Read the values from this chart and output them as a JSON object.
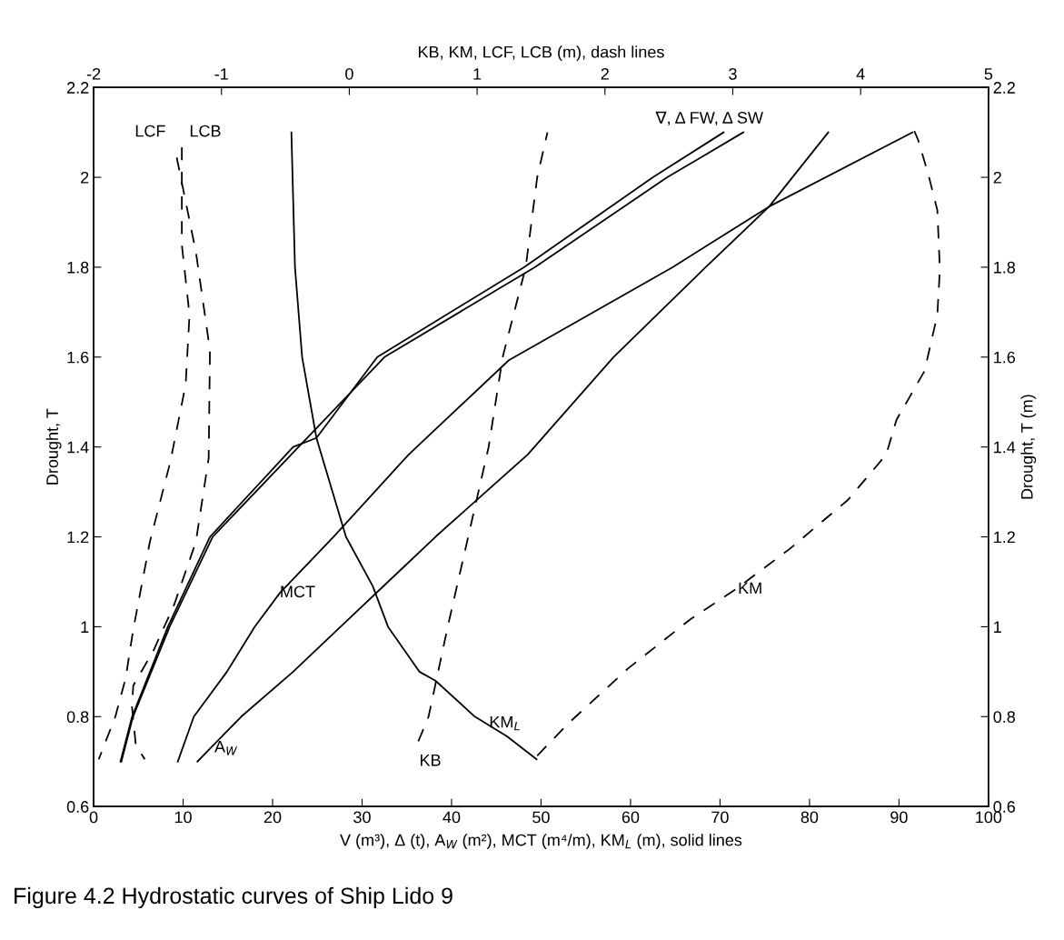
{
  "chart_data": {
    "type": "line",
    "title": "Figure 4.2 Hydrostatic curves of Ship Lido 9",
    "xlabel": "V (m³), Δ (t), A$_{W}$ (m²), MCT (m⁴/m), KM$_{L}$ (m), solid lines",
    "x2label": "KB, KM, LCF, LCB (m), dash lines",
    "ylabel": "Drought, T",
    "y2label": "Drought, T (m)",
    "xlim": [
      0,
      100
    ],
    "xticks": [
      0,
      10,
      20,
      30,
      40,
      50,
      60,
      70,
      80,
      90,
      100
    ],
    "x2lim": [
      -2,
      5
    ],
    "x2ticks": [
      -2,
      -1,
      0,
      1,
      2,
      3,
      4,
      5
    ],
    "ylim": [
      0.6,
      2.2
    ],
    "yticks": [
      0.6,
      0.8,
      1,
      1.2,
      1.4,
      1.6,
      1.8,
      2,
      2.2
    ],
    "y2lim": [
      0.6,
      2.2
    ],
    "y2ticks": [
      0.6,
      0.8,
      1,
      1.2,
      1.4,
      1.6,
      1.8,
      2,
      2.2
    ],
    "grid": false,
    "series": [
      {
        "color": "#000000",
        "line_style": "solid",
        "x": [
          3.0,
          4.3,
          8.3,
          13.0,
          22.3,
          24.9,
          31.7,
          48.1,
          62.5,
          70.4
        ],
        "values": [
          0.7,
          0.8,
          1.0,
          1.2,
          1.4,
          1.42,
          1.6,
          1.8,
          2.0,
          2.1
        ]
      },
      {
        "color": "#000000",
        "line_style": "solid",
        "x": [
          3.1,
          4.4,
          8.5,
          13.3,
          22.9,
          32.5,
          49.3,
          64.1,
          72.6
        ],
        "values": [
          0.7,
          0.8,
          1.0,
          1.2,
          1.4,
          1.6,
          1.8,
          2.0,
          2.1
        ]
      },
      {
        "color": "#000000",
        "line_style": "solid",
        "x": [
          9.4,
          11.2,
          14.9,
          18.0,
          20.8,
          26.8,
          35.2,
          46.4,
          64.7,
          75.5,
          91.5
        ],
        "values": [
          0.7,
          0.8,
          0.9,
          1.0,
          1.075,
          1.2,
          1.383,
          1.593,
          1.8,
          1.935,
          2.1
        ]
      },
      {
        "color": "#000000",
        "line_style": "solid",
        "x": [
          11.6,
          16.5,
          22.3,
          27.6,
          32.9,
          38.2,
          48.5,
          58.1,
          68.4,
          75.5,
          82.1
        ],
        "values": [
          0.7,
          0.8,
          0.9,
          1.0,
          1.1,
          1.2,
          1.383,
          1.6,
          1.8,
          1.935,
          2.1
        ]
      },
      {
        "color": "#000000",
        "line_style": "solid",
        "x": [
          22.1,
          22.5,
          23.3,
          24.9,
          28.2,
          31.2,
          32.9,
          36.4,
          38.2,
          42.6,
          46.2,
          49.5
        ],
        "values": [
          2.1,
          1.8,
          1.6,
          1.42,
          1.2,
          1.09,
          1.0,
          0.9,
          0.88,
          0.8,
          0.756,
          0.705
        ]
      },
      {
        "color": "#000000",
        "line_style": "dashed",
        "axis": "x2",
        "x": [
          0.54,
          0.62,
          0.77,
          0.93,
          1.09,
          1.2,
          1.38,
          1.47,
          1.55
        ],
        "values": [
          0.745,
          0.8,
          1.0,
          1.2,
          1.4,
          1.6,
          1.8,
          2.0,
          2.1
        ]
      },
      {
        "color": "#000000",
        "line_style": "dashed",
        "axis": "x2",
        "x": [
          1.47,
          1.71,
          2.18,
          2.67,
          3.02,
          3.44,
          3.9,
          4.2,
          4.28,
          4.5,
          4.6,
          4.62,
          4.6,
          4.53,
          4.45,
          4.42
        ],
        "values": [
          0.713,
          0.784,
          0.907,
          1.017,
          1.083,
          1.172,
          1.282,
          1.383,
          1.46,
          1.569,
          1.694,
          1.795,
          1.927,
          2.006,
          2.083,
          2.103
        ]
      },
      {
        "color": "#000000",
        "line_style": "dashed",
        "axis": "x2",
        "x": [
          -1.35,
          -1.2,
          -1.09,
          -1.1,
          -1.2,
          -1.37,
          -1.53,
          -1.69,
          -1.7,
          -1.67,
          -1.6
        ],
        "values": [
          2.044,
          1.834,
          1.615,
          1.375,
          1.189,
          1.049,
          0.948,
          0.869,
          0.822,
          0.737,
          0.705
        ]
      },
      {
        "color": "#000000",
        "line_style": "dashed",
        "axis": "x2",
        "x": [
          -1.31,
          -1.31,
          -1.25,
          -1.28,
          -1.4,
          -1.56,
          -1.69,
          -1.75,
          -1.83,
          -1.96
        ],
        "values": [
          2.067,
          1.85,
          1.694,
          1.539,
          1.367,
          1.189,
          0.994,
          0.885,
          0.8,
          0.705
        ]
      }
    ],
    "annotations": [
      "LCF",
      "LCB",
      "∇, Δ FW, Δ SW",
      "KB",
      {
        "text": "MCT",
        "x": 20.8,
        "y": 1.075
      },
      {
        "text": "A$_{W}$",
        "x": 13.5,
        "y": 0.73
      },
      {
        "text": "KM$_{L}$",
        "x": 44.2,
        "y": 0.785
      },
      {
        "text": "KM",
        "x": 72.0,
        "y": 1.083
      }
    ]
  }
}
